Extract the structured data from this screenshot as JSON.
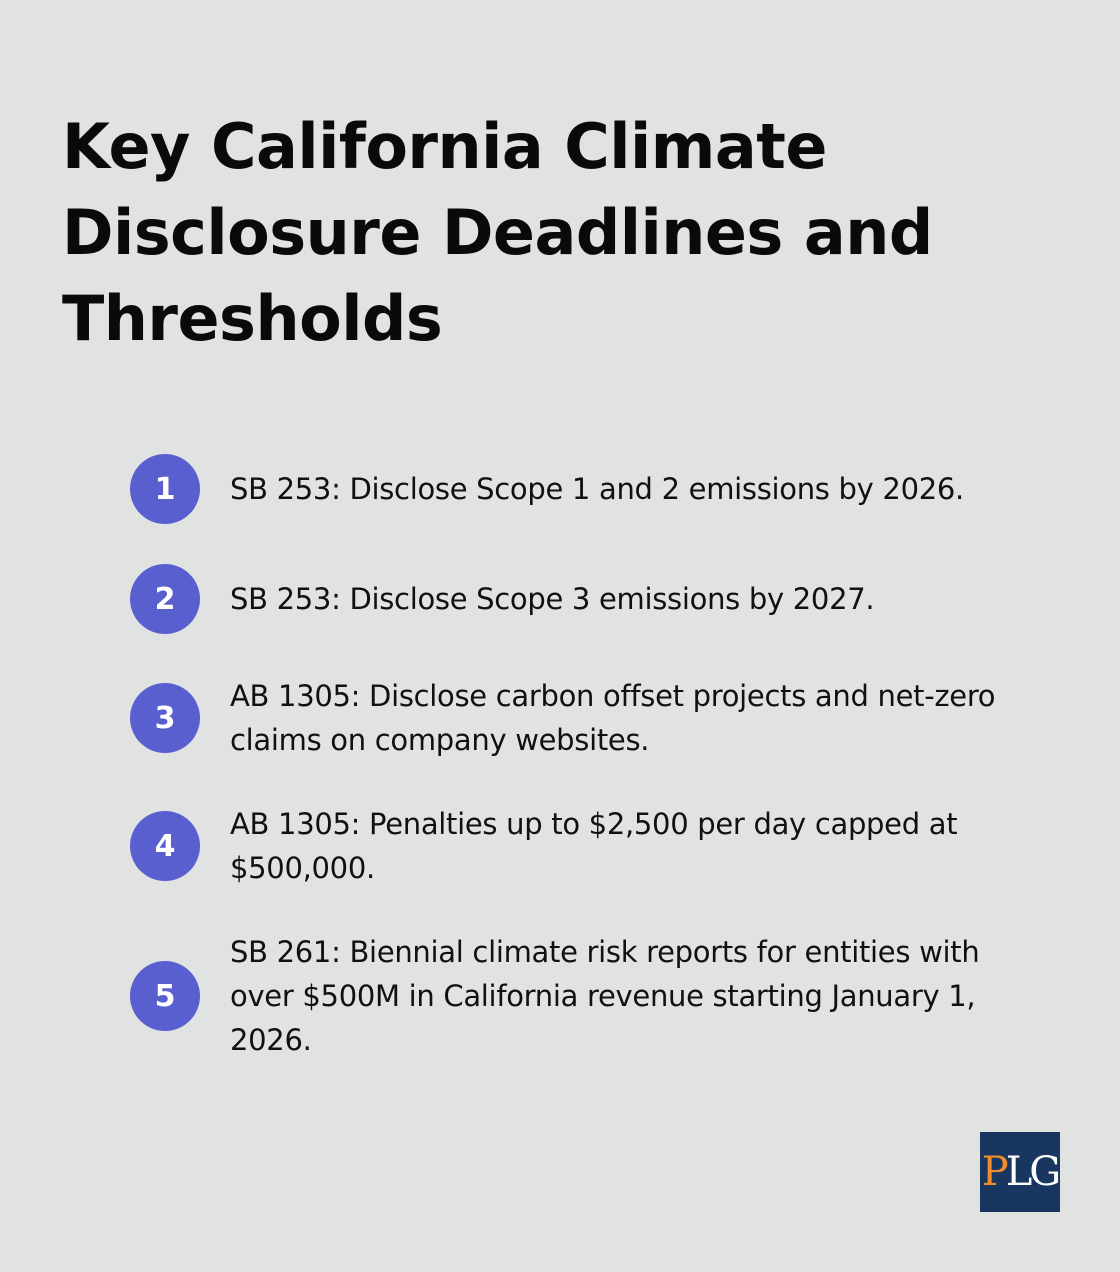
{
  "title": "Key California Climate Disclosure Deadlines and Thresholds",
  "items": [
    {
      "number": "1",
      "text": "SB 253: Disclose Scope 1 and 2 emissions by 2026."
    },
    {
      "number": "2",
      "text": "SB 253: Disclose Scope 3 emissions by 2027."
    },
    {
      "number": "3",
      "text": "AB 1305: Disclose carbon offset projects and net-zero claims on company websites."
    },
    {
      "number": "4",
      "text": "AB 1305: Penalties up to $2,500 per day capped at $500,000."
    },
    {
      "number": "5",
      "text": "SB 261: Biennial climate risk reports for entities with over $500M in California revenue starting January 1, 2026."
    }
  ],
  "logo": {
    "letters": [
      "P",
      "L",
      "G"
    ],
    "colors": {
      "background": "#18365f",
      "p": "#f28a2e",
      "l": "#ffffff",
      "g": "#ffffff"
    }
  },
  "colors": {
    "background": "#e1e3e2",
    "accent": "#5a5fd0",
    "text": "#111111"
  }
}
